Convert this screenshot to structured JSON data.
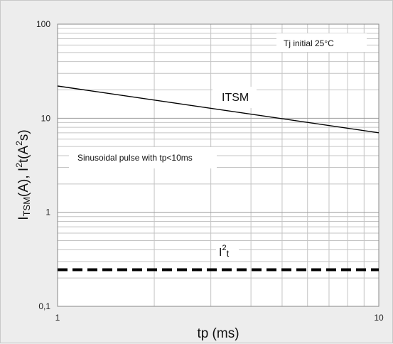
{
  "chart_data": {
    "type": "line",
    "x_scale": "log",
    "y_scale": "log",
    "xlim": [
      1,
      10
    ],
    "ylim": [
      0.1,
      100
    ],
    "xlabel": "tp (ms)",
    "ylabel": {
      "part1": "I",
      "part1_sub": "TSM",
      "part2": "(A), I",
      "part2_sup": "2",
      "part3": "t(A",
      "part3_sup": "2",
      "part4": "s)"
    },
    "x_ticks": [
      {
        "value": 1,
        "label": "1"
      },
      {
        "value": 10,
        "label": "10"
      }
    ],
    "y_ticks": [
      {
        "value": 0.1,
        "label": "0,1"
      },
      {
        "value": 1,
        "label": "1"
      },
      {
        "value": 10,
        "label": "10"
      },
      {
        "value": 100,
        "label": "100"
      }
    ],
    "grid": true,
    "series": [
      {
        "name": "ITSM",
        "style": "solid",
        "color": "#000000",
        "x": [
          1,
          10
        ],
        "y": [
          22,
          7
        ]
      },
      {
        "name": "I²t",
        "style": "dashed",
        "color": "#000000",
        "x": [
          1,
          10
        ],
        "y": [
          0.245,
          0.245
        ]
      }
    ],
    "annotations": {
      "tj": "Tj initial 25°C",
      "pulse": "Sinusoidal pulse with tp<10ms",
      "itsm_label": "ITSM",
      "i2t_base": "I",
      "i2t_sup": "2",
      "i2t_tail": "t"
    }
  }
}
